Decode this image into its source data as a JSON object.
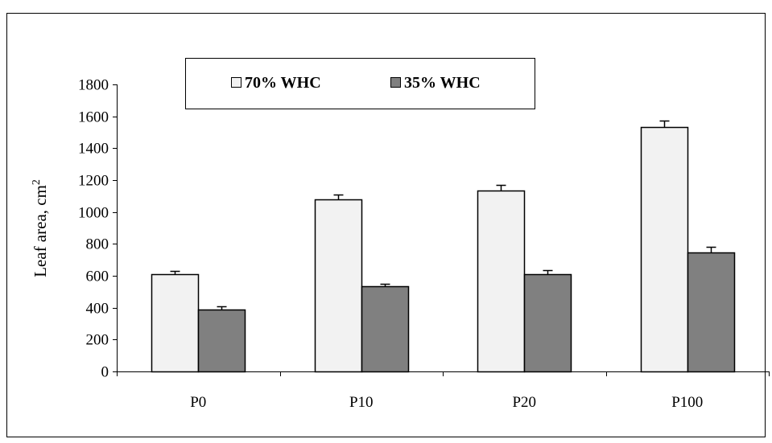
{
  "chart_data": {
    "type": "bar",
    "categories": [
      "P0",
      "P10",
      "P20",
      "P100"
    ],
    "series": [
      {
        "name": "70% WHC",
        "values": [
          610,
          1080,
          1135,
          1535
        ],
        "errors": [
          20,
          30,
          35,
          40
        ],
        "color": "#f2f2f2"
      },
      {
        "name": "35% WHC",
        "values": [
          390,
          535,
          610,
          745
        ],
        "errors": [
          18,
          15,
          25,
          35
        ],
        "color": "#808080"
      }
    ],
    "title": "",
    "xlabel": "",
    "ylabel": "Leaf area, cm",
    "ylabel_superscript": "2",
    "ylim": [
      0,
      1800
    ],
    "yticks": [
      "0",
      "200",
      "400",
      "600",
      "800",
      "1000",
      "1200",
      "1400",
      "1600",
      "1800"
    ],
    "grid": false,
    "legend_position": "top"
  }
}
